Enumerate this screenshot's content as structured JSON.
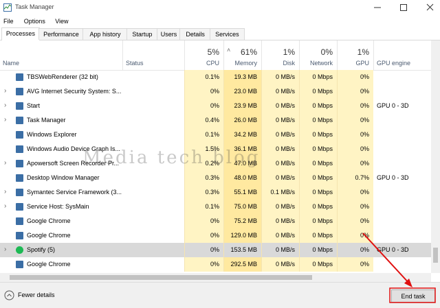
{
  "window": {
    "title": "Task Manager"
  },
  "menu": [
    "File",
    "Options",
    "View"
  ],
  "tabs": [
    "Processes",
    "Performance",
    "App history",
    "Startup",
    "Users",
    "Details",
    "Services"
  ],
  "selected_tab": 0,
  "header": {
    "name": "Name",
    "status": "Status",
    "cpu_pct": "5%",
    "cpu": "CPU",
    "memory_pct": "61%",
    "memory": "Memory",
    "disk_pct": "1%",
    "disk": "Disk",
    "network_pct": "0%",
    "network": "Network",
    "gpu_pct": "1%",
    "gpu": "GPU",
    "gpu_engine": "GPU engine"
  },
  "table": {
    "rows": [
      {
        "name": "TBSWebRenderer (32 bit)",
        "cpu": "0.1%",
        "memory": "19.3 MB",
        "disk": "0 MB/s",
        "network": "0 Mbps",
        "gpu": "0%",
        "expandable": false
      },
      {
        "name": "AVG Internet Security System: S...",
        "cpu": "0%",
        "memory": "23.0 MB",
        "disk": "0 MB/s",
        "network": "0 Mbps",
        "gpu": "0%",
        "expandable": true
      },
      {
        "name": "Start",
        "cpu": "0%",
        "memory": "23.9 MB",
        "disk": "0 MB/s",
        "network": "0 Mbps",
        "gpu": "0%",
        "gpu_engine": "GPU 0 - 3D",
        "expandable": true
      },
      {
        "name": "Task Manager",
        "cpu": "0.4%",
        "memory": "26.0 MB",
        "disk": "0 MB/s",
        "network": "0 Mbps",
        "gpu": "0%",
        "expandable": true
      },
      {
        "name": "Windows Explorer",
        "cpu": "0.1%",
        "memory": "34.2 MB",
        "disk": "0 MB/s",
        "network": "0 Mbps",
        "gpu": "0%",
        "expandable": false
      },
      {
        "name": "Windows Audio Device Graph Is...",
        "cpu": "1.5%",
        "memory": "36.1 MB",
        "disk": "0 MB/s",
        "network": "0 Mbps",
        "gpu": "0%",
        "expandable": false
      },
      {
        "name": "Apowersoft Screen Recorder Pr...",
        "cpu": "0.2%",
        "memory": "47.0 MB",
        "disk": "0 MB/s",
        "network": "0 Mbps",
        "gpu": "0%",
        "expandable": true
      },
      {
        "name": "Desktop Window Manager",
        "cpu": "0.3%",
        "memory": "48.0 MB",
        "disk": "0 MB/s",
        "network": "0 Mbps",
        "gpu": "0.7%",
        "gpu_engine": "GPU 0 - 3D",
        "expandable": false
      },
      {
        "name": "Symantec Service Framework (3...",
        "cpu": "0.3%",
        "memory": "55.1 MB",
        "disk": "0.1 MB/s",
        "network": "0 Mbps",
        "gpu": "0%",
        "expandable": true
      },
      {
        "name": "Service Host: SysMain",
        "cpu": "0.1%",
        "memory": "75.0 MB",
        "disk": "0 MB/s",
        "network": "0 Mbps",
        "gpu": "0%",
        "expandable": true
      },
      {
        "name": "Google Chrome",
        "cpu": "0%",
        "memory": "75.2 MB",
        "disk": "0 MB/s",
        "network": "0 Mbps",
        "gpu": "0%",
        "expandable": false
      },
      {
        "name": "Google Chrome",
        "cpu": "0%",
        "memory": "129.0 MB",
        "disk": "0 MB/s",
        "network": "0 Mbps",
        "gpu": "0%",
        "expandable": false
      },
      {
        "name": "Spotify (5)",
        "cpu": "0%",
        "memory": "153.5 MB",
        "disk": "0 MB/s",
        "network": "0 Mbps",
        "gpu": "0%",
        "gpu_engine": "GPU 0 - 3D",
        "expandable": true,
        "selected": true
      },
      {
        "name": "Google Chrome",
        "cpu": "0%",
        "memory": "292.5 MB",
        "disk": "0 MB/s",
        "network": "0 Mbps",
        "gpu": "0%",
        "expandable": false
      }
    ]
  },
  "footer": {
    "fewer_details": "Fewer details",
    "end_task": "End task"
  },
  "watermark": "Media tech blog"
}
